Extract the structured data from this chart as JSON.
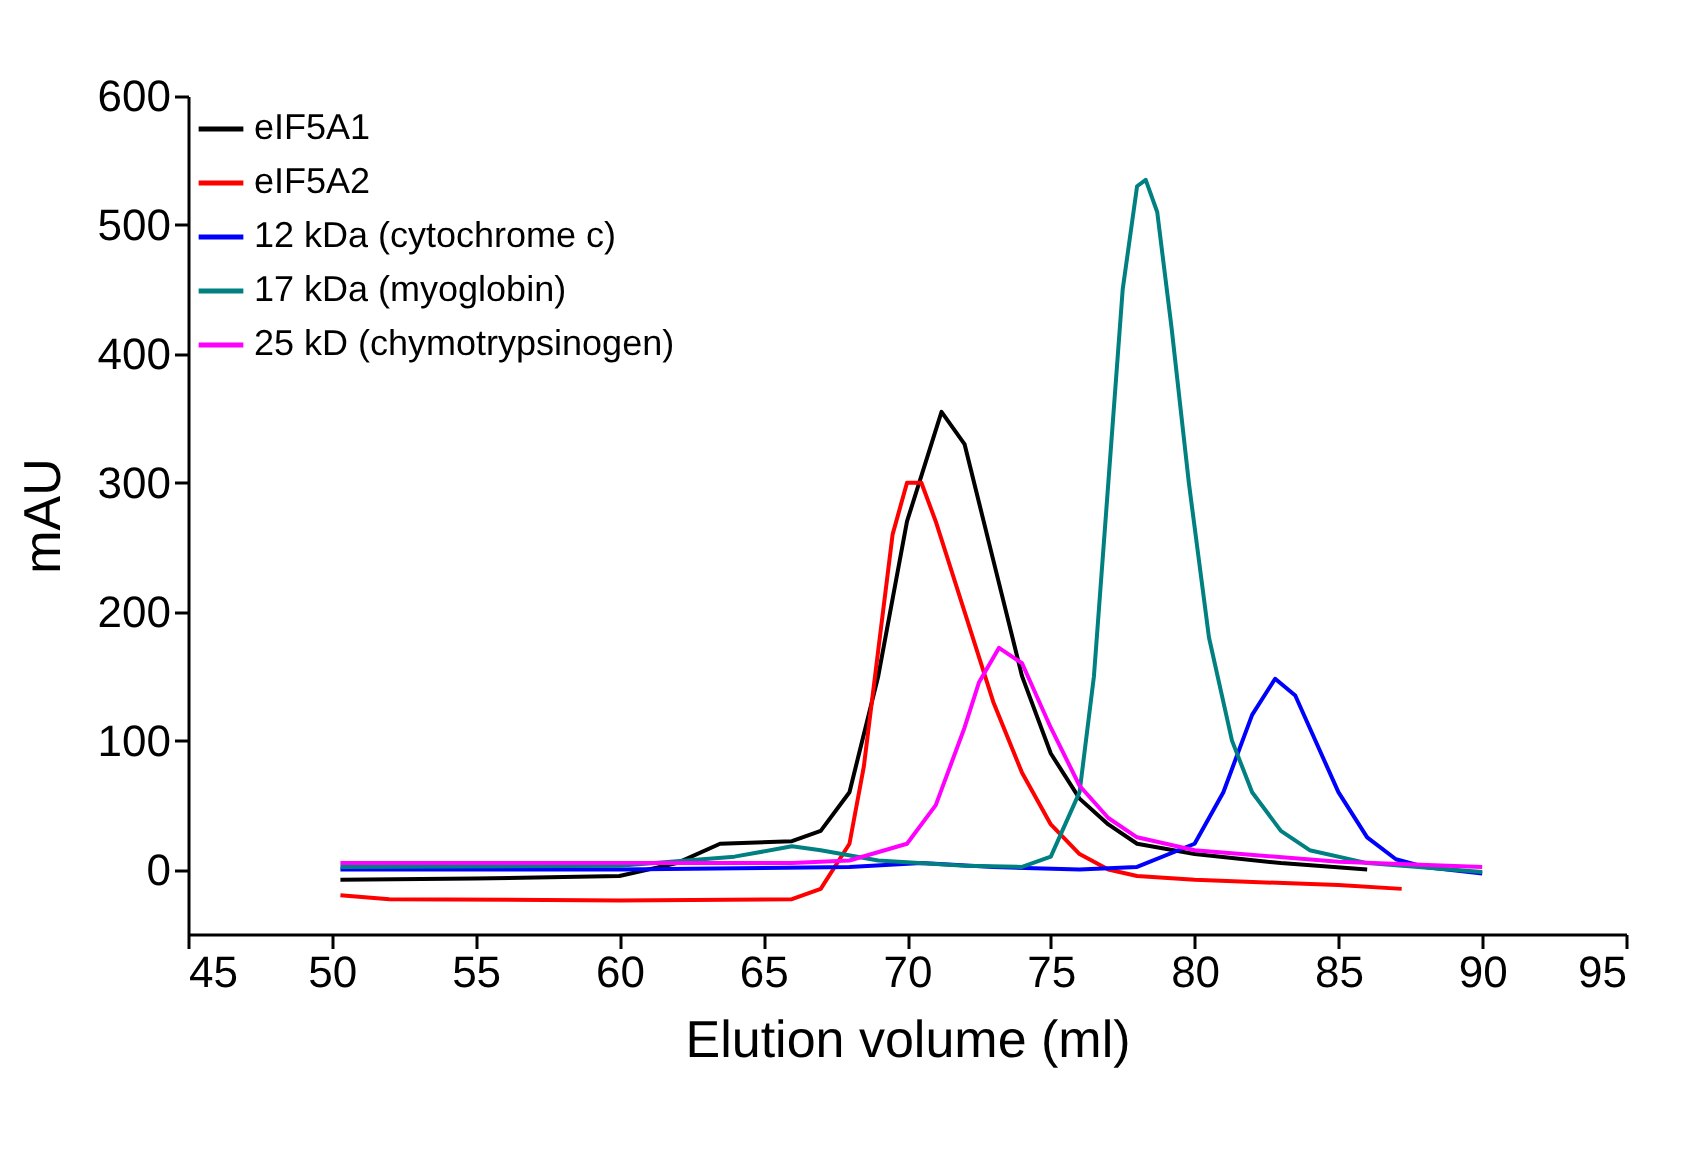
{
  "chart_data": {
    "type": "line",
    "xlabel": "Elution volume (ml)",
    "ylabel": "mAU",
    "xlim": [
      45,
      95
    ],
    "xticks": [
      45,
      50,
      55,
      60,
      65,
      70,
      75,
      80,
      85,
      90,
      95
    ],
    "ylim": [
      -50,
      600
    ],
    "yticks": [
      0,
      100,
      200,
      300,
      400,
      500,
      600
    ],
    "grid": false,
    "legend": "top left",
    "marker": "none",
    "line_style": "solid",
    "series": [
      {
        "name": "eIF5A1",
        "color": "#000000",
        "x": [
          50.3,
          55,
          60,
          62,
          63.5,
          66,
          67,
          68,
          69,
          70,
          71.2,
          72,
          73,
          74,
          75,
          76,
          77,
          78,
          80,
          83,
          86
        ],
        "values": [
          -8,
          -7,
          -5,
          5,
          20,
          22,
          30,
          60,
          150,
          270,
          355,
          330,
          240,
          150,
          90,
          55,
          35,
          20,
          12,
          5,
          0
        ]
      },
      {
        "name": "eIF5A2",
        "color": "#ff0000",
        "x": [
          50.3,
          52,
          60,
          66,
          67,
          68,
          68.5,
          69,
          69.5,
          70,
          70.5,
          71,
          72,
          73,
          74,
          75,
          76,
          77,
          78,
          80,
          85,
          87.2
        ],
        "values": [
          -20,
          -23,
          -24,
          -23,
          -15,
          20,
          80,
          170,
          260,
          300,
          300,
          270,
          200,
          130,
          75,
          35,
          12,
          0,
          -5,
          -8,
          -12,
          -15
        ]
      },
      {
        "name": "12 kDa (cytochrome c)",
        "color": "#0000ff",
        "x": [
          50.3,
          60,
          68,
          70.5,
          73,
          76,
          78,
          80,
          81,
          82,
          82.8,
          83.5,
          84,
          85,
          86,
          87,
          88,
          90
        ],
        "values": [
          0,
          0,
          2,
          5,
          2,
          0,
          2,
          20,
          60,
          120,
          148,
          135,
          110,
          60,
          25,
          8,
          2,
          -3
        ]
      },
      {
        "name": "17 kDa (myoglobin)",
        "color": "#008080",
        "x": [
          50.3,
          60,
          64,
          66,
          67,
          69,
          72,
          74,
          75,
          76,
          76.5,
          77,
          77.5,
          78,
          78.3,
          78.7,
          79.2,
          79.8,
          80.5,
          81.3,
          82,
          83,
          84,
          86,
          90
        ],
        "values": [
          2,
          3,
          10,
          18,
          15,
          7,
          3,
          2,
          10,
          60,
          150,
          300,
          450,
          530,
          535,
          510,
          420,
          300,
          180,
          100,
          60,
          30,
          15,
          5,
          -2
        ]
      },
      {
        "name": "25 kD (chymotrypsinogen)",
        "color": "#ff00ff",
        "x": [
          50.3,
          60,
          66,
          68,
          70,
          71,
          72,
          72.5,
          73.2,
          74,
          75,
          76,
          77,
          78,
          80,
          85,
          90
        ],
        "values": [
          5,
          5,
          5,
          7,
          20,
          50,
          110,
          145,
          172,
          160,
          110,
          65,
          40,
          25,
          15,
          6,
          2
        ]
      }
    ]
  }
}
